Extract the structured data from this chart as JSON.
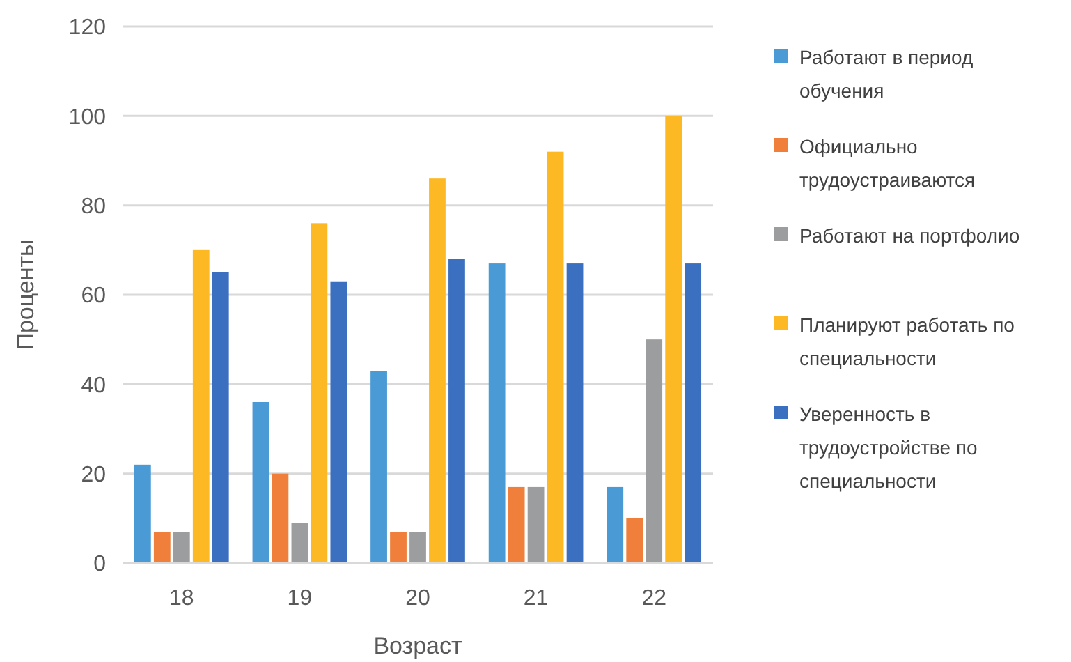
{
  "chart_data": {
    "type": "bar",
    "xlabel": "Возраст",
    "ylabel": "Проценты",
    "categories": [
      "18",
      "19",
      "20",
      "21",
      "22"
    ],
    "series": [
      {
        "name": "Работают в период обучения",
        "color": "#4a9ad6",
        "values": [
          22,
          36,
          43,
          67,
          17
        ]
      },
      {
        "name": "Официально трудоустраиваются",
        "color": "#ef7f3a",
        "values": [
          7,
          20,
          7,
          17,
          10
        ]
      },
      {
        "name": "Работают на портфолио",
        "color": "#9b9d9e",
        "values": [
          7,
          9,
          7,
          17,
          50
        ]
      },
      {
        "name": "Планируют работать по специальности",
        "color": "#fcb924",
        "values": [
          70,
          76,
          86,
          92,
          100
        ]
      },
      {
        "name": "Уверенность в трудоустройстве по специальности",
        "color": "#3b6fbf",
        "values": [
          65,
          63,
          68,
          67,
          67
        ]
      }
    ],
    "ylim": [
      0,
      120
    ],
    "yticks": [
      0,
      20,
      40,
      60,
      80,
      100,
      120
    ],
    "grid": "y",
    "legend": "right"
  }
}
